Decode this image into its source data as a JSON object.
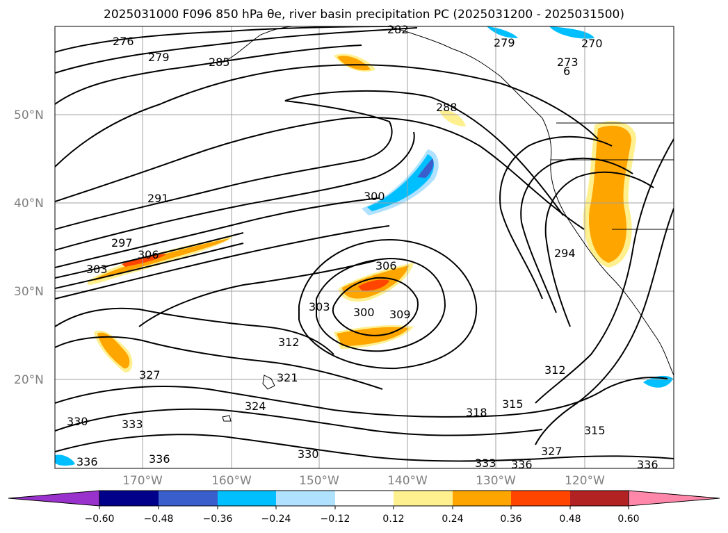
{
  "title": "2025031000 F096 850 hPa θe, river basin precipitation PC (2025031200 - 2025031500)",
  "lat_labels": [
    "50°N",
    "40°N",
    "30°N",
    "20°N"
  ],
  "lon_labels": [
    "170°W",
    "160°W",
    "150°W",
    "140°W",
    "130°W",
    "120°W"
  ],
  "contour_labels": [
    "276",
    "279",
    "285",
    "282",
    "279",
    "270",
    "273",
    "6",
    "288",
    "291",
    "300",
    "297",
    "306",
    "303",
    "306",
    "303",
    "300",
    "309",
    "312",
    "327",
    "321",
    "324",
    "333",
    "330",
    "336",
    "336",
    "330",
    "294",
    "312",
    "315",
    "318",
    "315",
    "327",
    "333",
    "336",
    "336"
  ],
  "colorbar": {
    "ticks": [
      "−0.60",
      "−0.48",
      "−0.36",
      "−0.24",
      "−0.12",
      "0.12",
      "0.24",
      "0.36",
      "0.48",
      "0.60"
    ],
    "colors": [
      "#9932cc",
      "#00008b",
      "#3a5fcd",
      "#00bfff",
      "#b0e2ff",
      "#ffffff",
      "#fff08f",
      "#ffa500",
      "#ff4500",
      "#b22222",
      "#ff88aa"
    ]
  }
}
